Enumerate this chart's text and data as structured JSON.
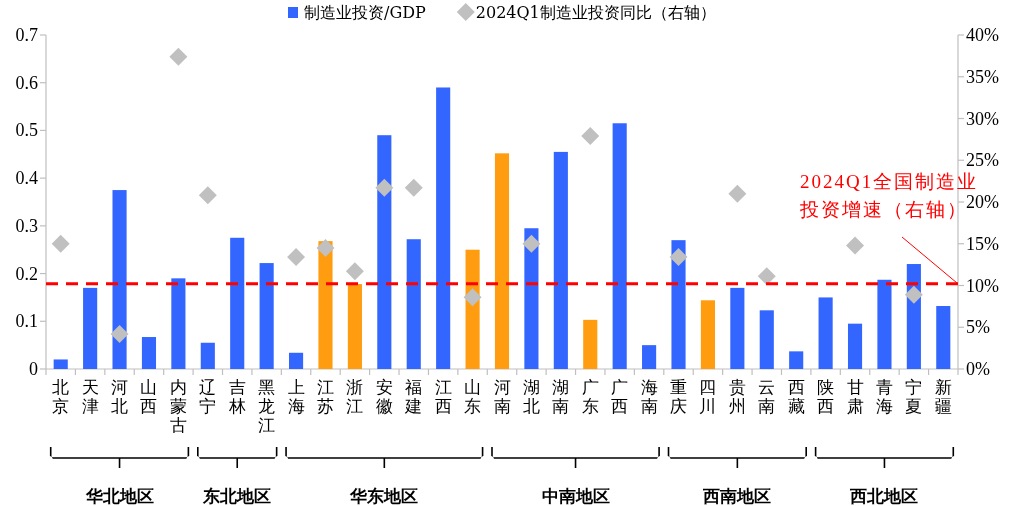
{
  "chart_data": {
    "type": "bar",
    "categories": [
      "北京",
      "天津",
      "河北",
      "山西",
      "内蒙古",
      "辽宁",
      "吉林",
      "黑龙江",
      "上海",
      "江苏",
      "浙江",
      "安徽",
      "福建",
      "江西",
      "山东",
      "河南",
      "湖北",
      "湖南",
      "广东",
      "广西",
      "海南",
      "重庆",
      "四川",
      "贵州",
      "云南",
      "西藏",
      "陕西",
      "甘肃",
      "青海",
      "宁夏",
      "新疆"
    ],
    "series": [
      {
        "name": "制造业投资/GDP",
        "color": "#3366ff",
        "colors": [
          "#3366ff",
          "#3366ff",
          "#3366ff",
          "#3366ff",
          "#3366ff",
          "#3366ff",
          "#3366ff",
          "#3366ff",
          "#3366ff",
          "#ff9c0f",
          "#ff9c0f",
          "#3366ff",
          "#3366ff",
          "#3366ff",
          "#ff9c0f",
          "#ff9c0f",
          "#3366ff",
          "#3366ff",
          "#ff9c0f",
          "#3366ff",
          "#3366ff",
          "#3366ff",
          "#ff9c0f",
          "#3366ff",
          "#3366ff",
          "#3366ff",
          "#3366ff",
          "#3366ff",
          "#3366ff",
          "#3366ff",
          "#3366ff"
        ],
        "values": [
          0.02,
          0.17,
          0.375,
          0.067,
          0.19,
          0.055,
          0.275,
          0.222,
          0.034,
          0.268,
          0.178,
          0.49,
          0.272,
          0.59,
          0.25,
          0.452,
          0.295,
          0.455,
          0.103,
          0.515,
          0.05,
          0.27,
          0.144,
          0.17,
          0.123,
          0.037,
          0.15,
          0.095,
          0.187,
          0.22,
          0.132
        ]
      },
      {
        "name": "2024Q1制造业投资同比（右轴）",
        "type": "scatter",
        "axis": "y2",
        "color": "#c0c0c0",
        "marker": "diamond",
        "values": [
          15,
          null,
          4.2,
          null,
          37.4,
          20.8,
          null,
          null,
          13.4,
          14.5,
          11.7,
          21.7,
          21.7,
          null,
          8.6,
          null,
          15,
          null,
          27.9,
          null,
          null,
          13.4,
          null,
          21,
          11.1,
          null,
          null,
          14.8,
          null,
          8.9,
          null
        ]
      }
    ],
    "ylim": [
      0,
      0.7
    ],
    "yticks": [
      0,
      0.1,
      0.2,
      0.3,
      0.4,
      0.5,
      0.6,
      0.7
    ],
    "y2lim": [
      0,
      40
    ],
    "y2ticks": [
      {
        "value": 0,
        "label": "0%"
      },
      {
        "value": 5,
        "label": "5%"
      },
      {
        "value": 10,
        "label": "10%"
      },
      {
        "value": 15,
        "label": "15%"
      },
      {
        "value": 20,
        "label": "20%"
      },
      {
        "value": 25,
        "label": "25%"
      },
      {
        "value": 30,
        "label": "30%"
      },
      {
        "value": 35,
        "label": "35%"
      },
      {
        "value": 40,
        "label": "40%"
      }
    ],
    "ref_lines": [
      {
        "axis": "y2",
        "value": 10.2,
        "label": "2024Q1全国制造业投资增速（右轴）",
        "color": "#ff0000",
        "line_style": "dashed"
      }
    ],
    "annotations": [
      "华北地区",
      "东北地区",
      "华东地区",
      "中南地区",
      "西南地区",
      "西北地区"
    ],
    "legend": "top",
    "grid": false
  }
}
